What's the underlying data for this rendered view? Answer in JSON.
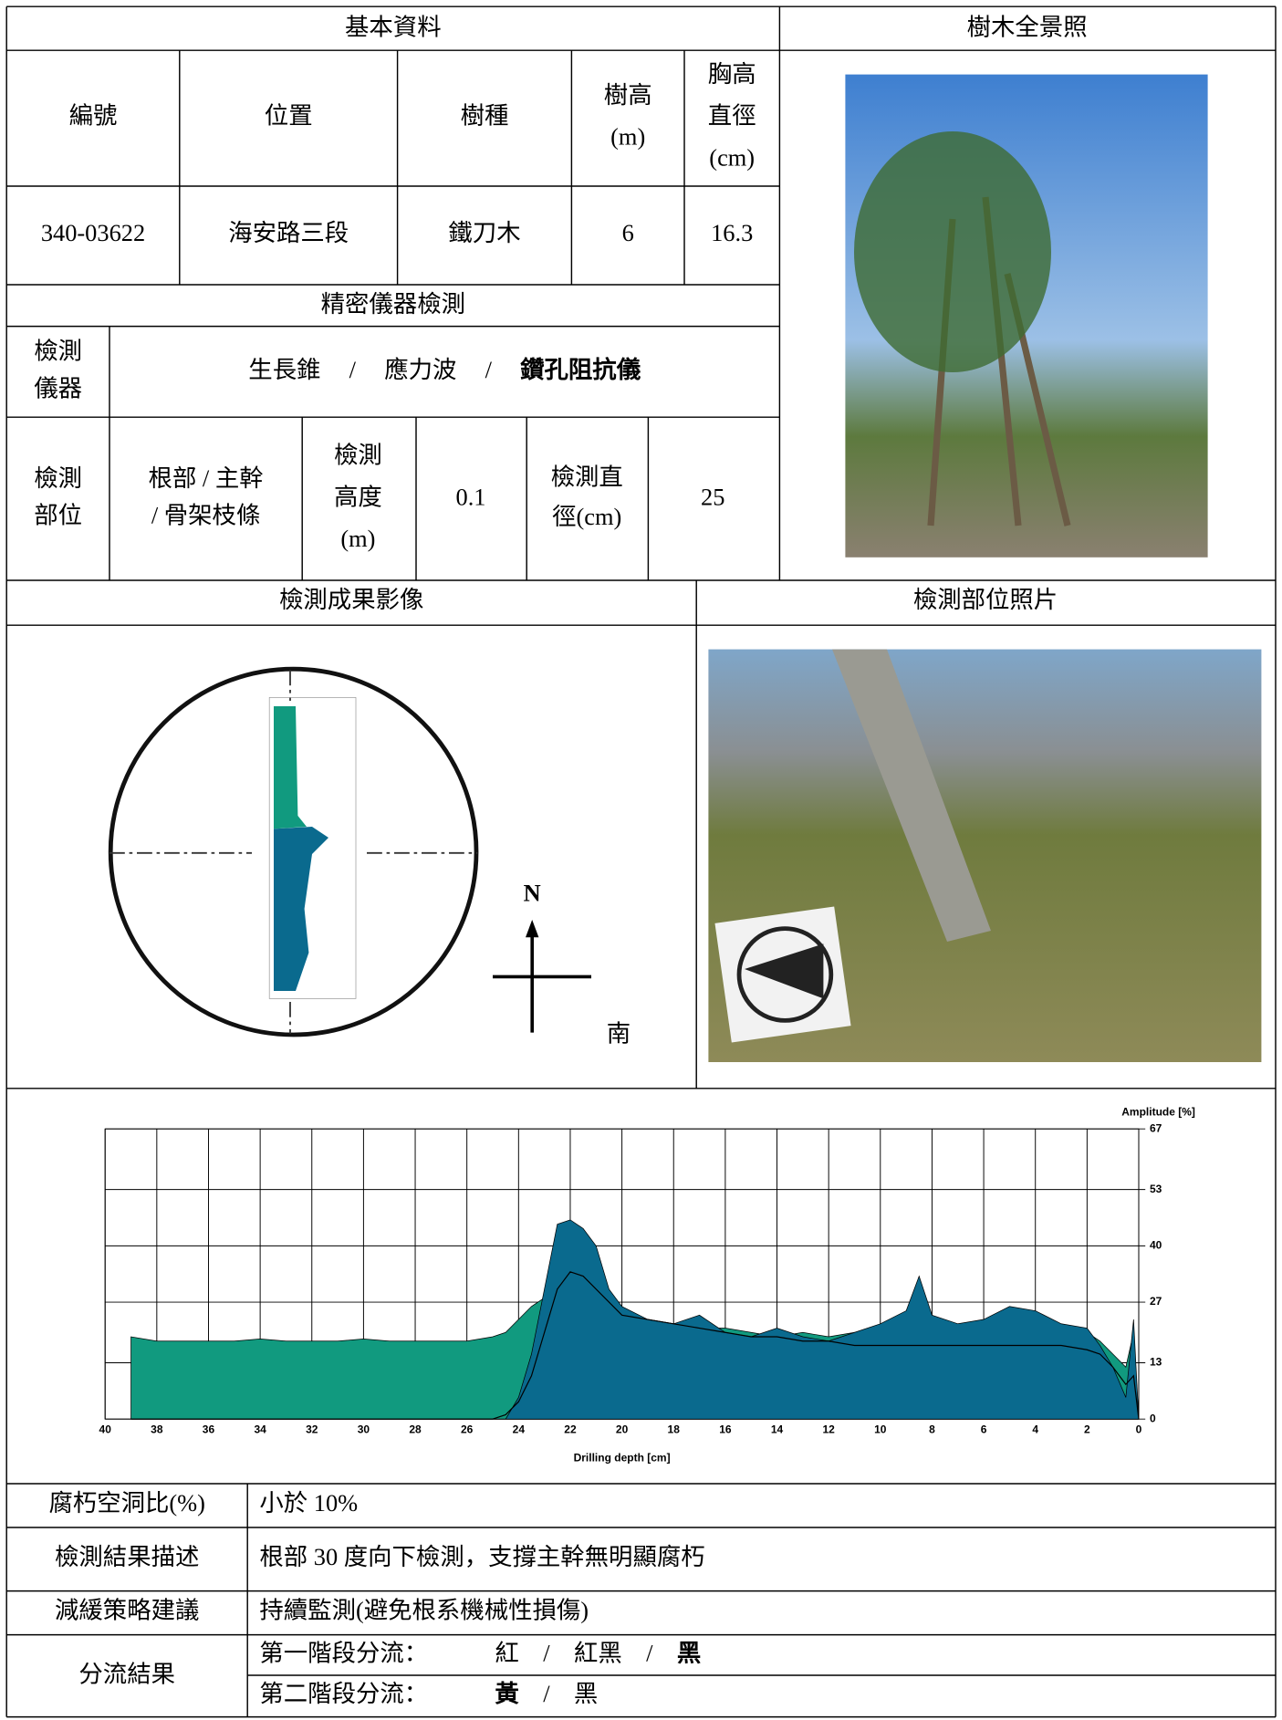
{
  "basic_info": {
    "title": "基本資料",
    "headers": [
      [
        "編號"
      ],
      [
        "位置"
      ],
      [
        "樹種"
      ],
      [
        "樹高",
        "(m)"
      ],
      [
        "胸高",
        "直徑",
        "(cm)"
      ]
    ],
    "values": [
      "340-03622",
      "海安路三段",
      "鐵刀木",
      6,
      16.3
    ]
  },
  "panorama_title": "樹木全景照",
  "instrument_section": {
    "title": "精密儀器檢測",
    "instrument": {
      "label": [
        "檢測",
        "儀器"
      ],
      "options": [
        "生長錐",
        "應力波",
        "鑽孔阻抗儀"
      ],
      "separator": "/",
      "selected": [
        2
      ]
    },
    "location": {
      "label": [
        "檢測",
        "部位"
      ],
      "parts": [
        "根部 / 主幹",
        "/ 骨架枝條"
      ],
      "height_label": [
        "檢測",
        "高度",
        "(m)"
      ],
      "height": 0.1,
      "diameter_label": [
        "檢測直",
        "徑(cm)"
      ],
      "diameter": 25
    }
  },
  "results_image_title": "檢測成果影像",
  "site_photo_title": "檢測部位照片",
  "compass": {
    "north": "N",
    "south": "南"
  },
  "resistograph": {
    "type": "area",
    "x_label": "Drilling depth [cm]",
    "y_label": "Amplitude [%]",
    "xlim": [
      40,
      0
    ],
    "ylim": [
      0,
      67
    ],
    "xticks": [
      40,
      38,
      36,
      34,
      32,
      30,
      28,
      26,
      24,
      22,
      20,
      18,
      16,
      14,
      12,
      10,
      8,
      6,
      4,
      2,
      0
    ],
    "yticks": [
      0,
      13,
      27,
      40,
      53,
      67
    ],
    "grid": true,
    "x": [
      39,
      38,
      37,
      36,
      35,
      34,
      33,
      32,
      31,
      30,
      29,
      28,
      27,
      26,
      25,
      24.5,
      24,
      23.5,
      23,
      22.5,
      22,
      21.5,
      21,
      20.5,
      20,
      19,
      18,
      17,
      16,
      15,
      14,
      13,
      12,
      11,
      10,
      9,
      8.5,
      8,
      7,
      6,
      5,
      4,
      3,
      2,
      1.5,
      1,
      0.5,
      0.2,
      0
    ],
    "series": [
      {
        "color": "#119a7f",
        "values": [
          19,
          18,
          18,
          18,
          18,
          18.5,
          18,
          18,
          18,
          18.5,
          18,
          18,
          18,
          18,
          19,
          20,
          23,
          26,
          28,
          30,
          34,
          32,
          30,
          27,
          25,
          23,
          22,
          21,
          21,
          20,
          19,
          20,
          19,
          20,
          20,
          22,
          24,
          22,
          21,
          22,
          23,
          22,
          21,
          20,
          18,
          15,
          12,
          20,
          0
        ]
      },
      {
        "color": "#0a6a8e",
        "values": [
          0,
          0,
          0,
          0,
          0,
          0,
          0,
          0,
          0,
          0,
          0,
          0,
          0,
          0,
          0,
          0,
          5,
          15,
          30,
          45,
          46,
          44,
          40,
          30,
          26,
          23,
          22,
          24,
          20,
          19,
          21,
          19,
          18,
          20,
          22,
          25,
          33,
          24,
          22,
          23,
          26,
          25,
          22,
          21,
          17,
          12,
          5,
          23,
          0
        ]
      },
      {
        "color": "#000000",
        "line": true,
        "values": [
          0,
          0,
          0,
          0,
          0,
          0,
          0,
          0,
          0,
          0,
          0,
          0,
          0,
          0,
          0,
          1,
          4,
          10,
          20,
          30,
          34,
          33,
          30,
          27,
          24,
          23,
          22,
          21,
          20,
          19,
          19,
          18,
          18,
          17,
          17,
          17,
          17,
          17,
          17,
          17,
          17,
          17,
          17,
          16,
          15,
          12,
          8,
          10,
          0
        ]
      }
    ]
  },
  "summary": [
    {
      "label": "腐朽空洞比(%)",
      "text": "小於 10%"
    },
    {
      "label": "檢測結果描述",
      "text": "根部 30 度向下檢測，支撐主幹無明顯腐朽"
    },
    {
      "label": "減緩策略建議",
      "text": "持續監測(避免根系機械性損傷)"
    }
  ],
  "classification": {
    "label": "分流結果",
    "separator": "/",
    "stages": [
      {
        "label": "第一階段分流：",
        "options": [
          "紅",
          "紅黑",
          "黑"
        ],
        "selected": [
          2
        ]
      },
      {
        "label": "第二階段分流：",
        "options": [
          "黃",
          "黑"
        ],
        "selected": [
          0
        ]
      }
    ]
  }
}
